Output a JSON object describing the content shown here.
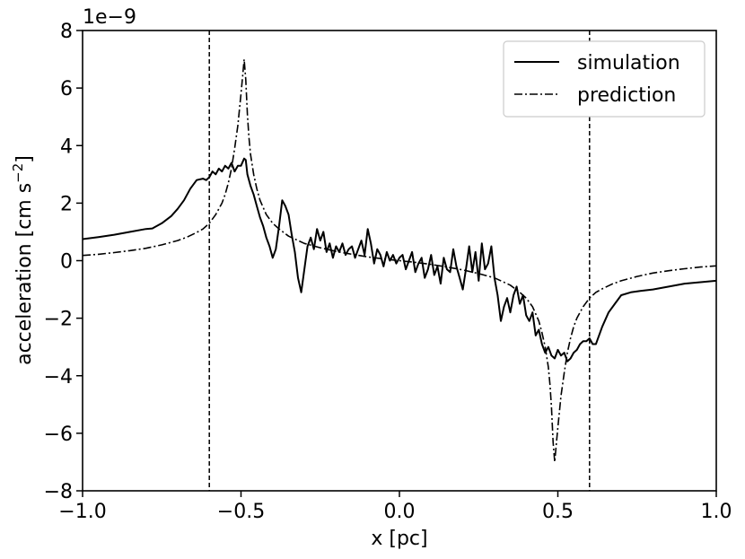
{
  "chart_data": {
    "type": "line",
    "xlabel": "x [pc]",
    "ylabel": "acceleration [cm s",
    "ylabel_sup": "−2",
    "ylabel_close": "]",
    "y_offset_label": "1e−9",
    "xlim": [
      -1.0,
      1.0
    ],
    "ylim": [
      -8,
      8
    ],
    "x_ticks": [
      -1.0,
      -0.5,
      0.0,
      0.5,
      1.0
    ],
    "x_tick_labels": [
      "−1.0",
      "−0.5",
      "0.0",
      "0.5",
      "1.0"
    ],
    "y_ticks": [
      -8,
      -6,
      -4,
      -2,
      0,
      2,
      4,
      6,
      8
    ],
    "y_tick_labels": [
      "−8",
      "−6",
      "−4",
      "−2",
      "0",
      "2",
      "4",
      "6",
      "8"
    ],
    "y_scale_factor": 1e-09,
    "grid": false,
    "legend_position": "top-right",
    "vertical_lines": [
      -0.6,
      0.6
    ],
    "series": [
      {
        "name": "simulation",
        "style": "solid",
        "color": "#000000",
        "x": [
          -1.0,
          -0.95,
          -0.9,
          -0.85,
          -0.8,
          -0.78,
          -0.75,
          -0.72,
          -0.7,
          -0.68,
          -0.66,
          -0.64,
          -0.62,
          -0.61,
          -0.6,
          -0.59,
          -0.58,
          -0.57,
          -0.56,
          -0.55,
          -0.54,
          -0.53,
          -0.52,
          -0.51,
          -0.5,
          -0.49,
          -0.485,
          -0.48,
          -0.47,
          -0.46,
          -0.45,
          -0.44,
          -0.43,
          -0.42,
          -0.41,
          -0.4,
          -0.39,
          -0.38,
          -0.37,
          -0.36,
          -0.35,
          -0.34,
          -0.33,
          -0.32,
          -0.31,
          -0.3,
          -0.29,
          -0.28,
          -0.27,
          -0.26,
          -0.25,
          -0.24,
          -0.23,
          -0.22,
          -0.21,
          -0.2,
          -0.19,
          -0.18,
          -0.17,
          -0.16,
          -0.15,
          -0.14,
          -0.13,
          -0.12,
          -0.11,
          -0.1,
          -0.09,
          -0.08,
          -0.07,
          -0.06,
          -0.05,
          -0.04,
          -0.03,
          -0.02,
          -0.01,
          0.0,
          0.01,
          0.02,
          0.03,
          0.04,
          0.05,
          0.06,
          0.07,
          0.08,
          0.09,
          0.1,
          0.11,
          0.12,
          0.13,
          0.14,
          0.15,
          0.16,
          0.17,
          0.18,
          0.19,
          0.2,
          0.21,
          0.22,
          0.23,
          0.24,
          0.25,
          0.26,
          0.27,
          0.28,
          0.29,
          0.3,
          0.31,
          0.32,
          0.33,
          0.34,
          0.35,
          0.36,
          0.37,
          0.38,
          0.39,
          0.4,
          0.41,
          0.42,
          0.43,
          0.44,
          0.45,
          0.46,
          0.47,
          0.48,
          0.49,
          0.5,
          0.51,
          0.52,
          0.53,
          0.54,
          0.55,
          0.56,
          0.57,
          0.58,
          0.59,
          0.6,
          0.61,
          0.62,
          0.64,
          0.66,
          0.68,
          0.7,
          0.73,
          0.76,
          0.8,
          0.85,
          0.9,
          0.95,
          1.0
        ],
        "values": [
          0.75,
          0.82,
          0.9,
          1.0,
          1.1,
          1.12,
          1.3,
          1.55,
          1.8,
          2.1,
          2.5,
          2.8,
          2.85,
          2.8,
          2.9,
          3.1,
          3.0,
          3.2,
          3.1,
          3.3,
          3.2,
          3.4,
          3.1,
          3.3,
          3.3,
          3.55,
          3.5,
          3.0,
          2.6,
          2.3,
          1.9,
          1.5,
          1.2,
          0.8,
          0.5,
          0.1,
          0.4,
          1.2,
          2.1,
          1.9,
          1.6,
          0.9,
          0.3,
          -0.6,
          -1.1,
          -0.3,
          0.5,
          0.8,
          0.4,
          1.1,
          0.7,
          1.0,
          0.3,
          0.6,
          0.1,
          0.5,
          0.3,
          0.6,
          0.2,
          0.4,
          0.5,
          0.1,
          0.4,
          0.7,
          0.2,
          1.1,
          0.6,
          -0.1,
          0.4,
          0.2,
          -0.2,
          0.3,
          0.0,
          0.2,
          -0.1,
          0.1,
          0.2,
          -0.3,
          0.0,
          0.3,
          -0.4,
          -0.1,
          0.1,
          -0.6,
          -0.3,
          0.2,
          -0.5,
          -0.2,
          -0.8,
          0.1,
          -0.3,
          -0.4,
          0.4,
          -0.2,
          -0.6,
          -1.0,
          -0.3,
          0.5,
          -0.4,
          0.3,
          -0.7,
          0.6,
          -0.3,
          -0.1,
          0.5,
          -0.6,
          -1.2,
          -2.1,
          -1.6,
          -1.3,
          -1.8,
          -1.2,
          -0.9,
          -1.5,
          -1.2,
          -1.9,
          -2.1,
          -1.8,
          -2.6,
          -2.4,
          -2.9,
          -3.2,
          -3.0,
          -3.3,
          -3.4,
          -3.1,
          -3.3,
          -3.2,
          -3.5,
          -3.4,
          -3.2,
          -3.1,
          -2.9,
          -2.8,
          -2.8,
          -2.7,
          -2.9,
          -2.9,
          -2.3,
          -1.8,
          -1.5,
          -1.2,
          -1.1,
          -1.05,
          -1.0,
          -0.9,
          -0.8,
          -0.75,
          -0.7
        ]
      },
      {
        "name": "prediction",
        "style": "dashdot",
        "color": "#000000",
        "x": [
          -1.0,
          -0.95,
          -0.9,
          -0.85,
          -0.8,
          -0.75,
          -0.7,
          -0.67,
          -0.64,
          -0.62,
          -0.6,
          -0.58,
          -0.56,
          -0.55,
          -0.54,
          -0.53,
          -0.52,
          -0.51,
          -0.5,
          -0.495,
          -0.49,
          -0.485,
          -0.48,
          -0.475,
          -0.47,
          -0.46,
          -0.45,
          -0.44,
          -0.43,
          -0.42,
          -0.4,
          -0.38,
          -0.35,
          -0.3,
          -0.25,
          -0.2,
          -0.15,
          -0.1,
          -0.05,
          0.0,
          0.05,
          0.1,
          0.15,
          0.2,
          0.25,
          0.3,
          0.35,
          0.38,
          0.4,
          0.42,
          0.43,
          0.44,
          0.45,
          0.46,
          0.47,
          0.475,
          0.48,
          0.485,
          0.49,
          0.495,
          0.5,
          0.51,
          0.52,
          0.53,
          0.54,
          0.55,
          0.56,
          0.58,
          0.6,
          0.62,
          0.64,
          0.67,
          0.7,
          0.75,
          0.8,
          0.85,
          0.9,
          0.95,
          1.0
        ],
        "values": [
          0.18,
          0.22,
          0.28,
          0.35,
          0.43,
          0.55,
          0.7,
          0.82,
          0.98,
          1.1,
          1.3,
          1.6,
          2.0,
          2.3,
          2.7,
          3.2,
          3.9,
          4.7,
          5.8,
          6.4,
          7.0,
          6.3,
          5.1,
          4.3,
          3.7,
          3.0,
          2.5,
          2.1,
          1.85,
          1.6,
          1.3,
          1.1,
          0.85,
          0.6,
          0.45,
          0.32,
          0.22,
          0.13,
          0.06,
          0.0,
          -0.06,
          -0.13,
          -0.22,
          -0.32,
          -0.45,
          -0.6,
          -0.85,
          -1.1,
          -1.3,
          -1.6,
          -1.85,
          -2.1,
          -2.5,
          -3.0,
          -3.7,
          -4.3,
          -5.1,
          -6.3,
          -7.0,
          -6.4,
          -5.8,
          -4.7,
          -3.9,
          -3.2,
          -2.7,
          -2.3,
          -2.0,
          -1.6,
          -1.3,
          -1.1,
          -0.98,
          -0.82,
          -0.7,
          -0.55,
          -0.43,
          -0.35,
          -0.28,
          -0.22,
          -0.18
        ]
      }
    ]
  }
}
